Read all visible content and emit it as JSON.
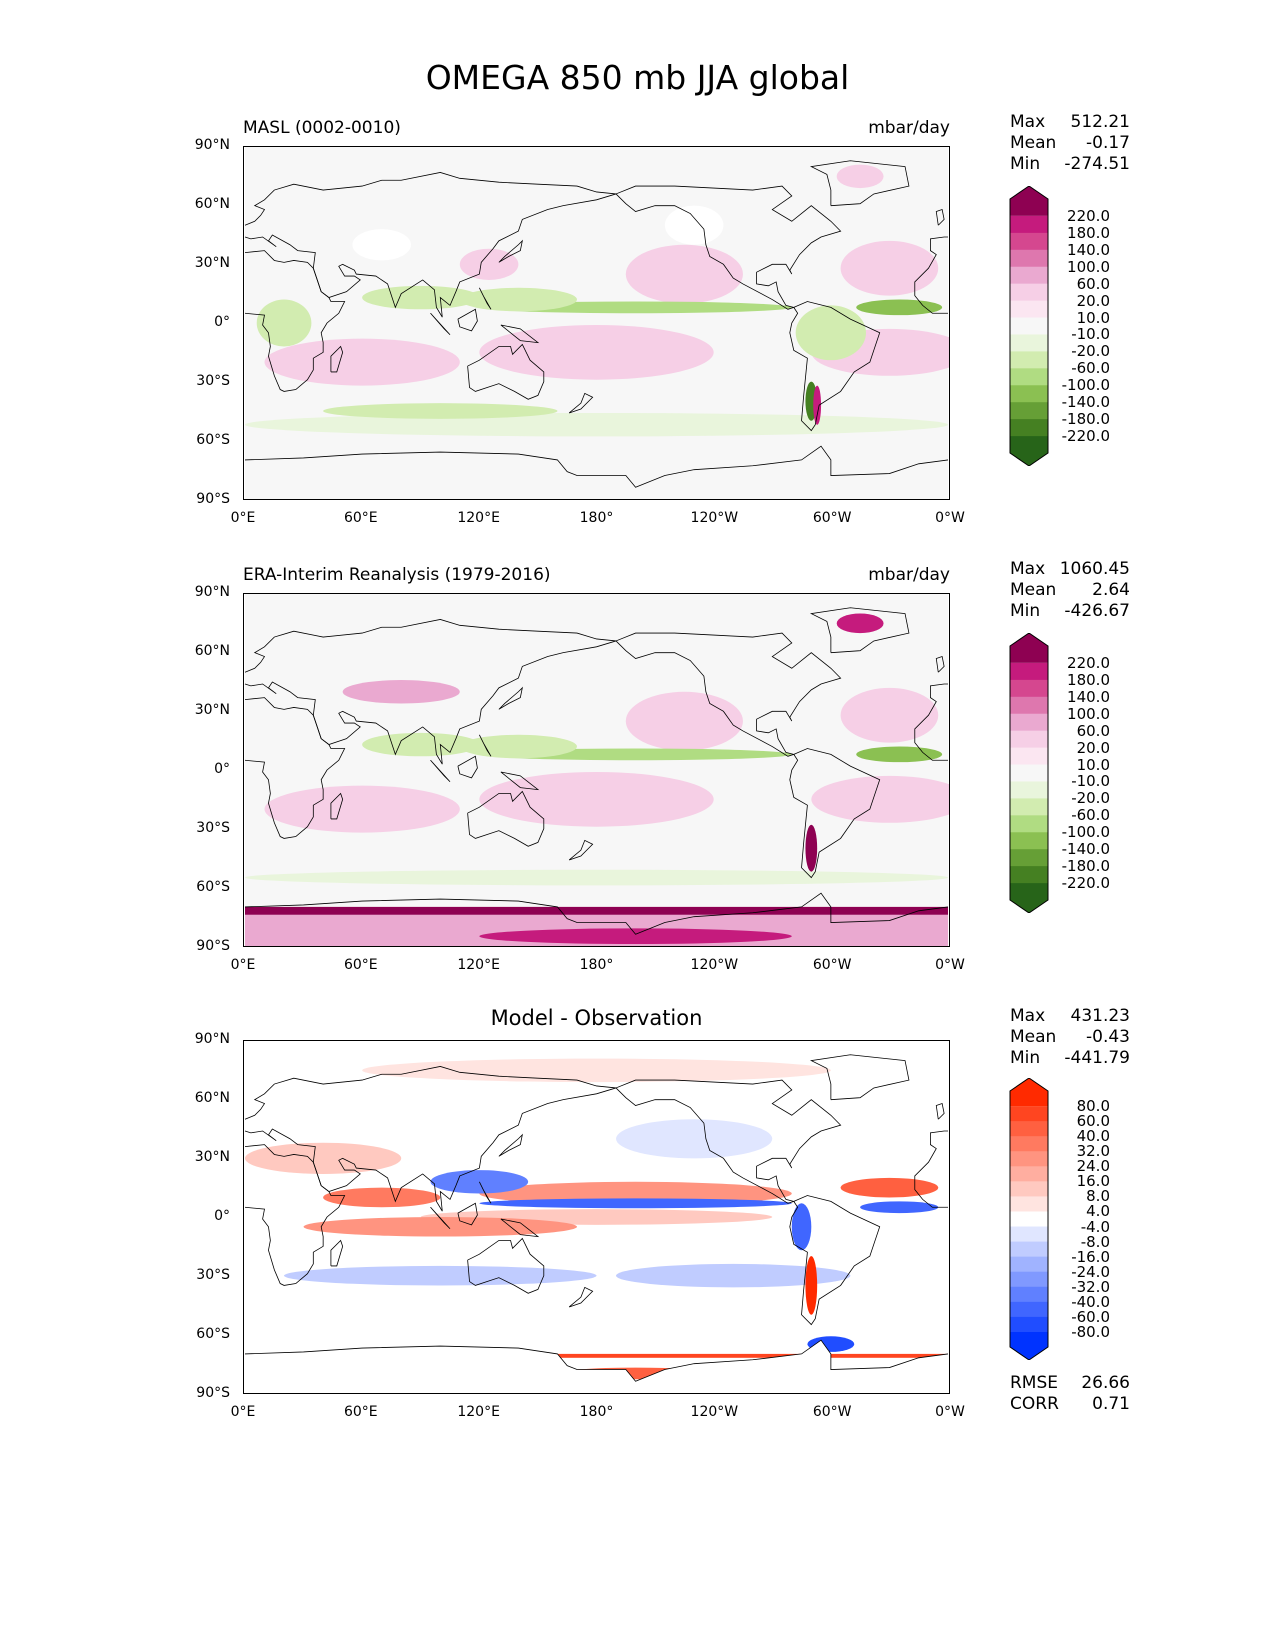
{
  "title": "OMEGA 850 mb JJA global",
  "chart_data": [
    {
      "type": "heatmap",
      "title_left": "MASL (0002-0010)",
      "title_right": "mbar/day",
      "stats": {
        "max_label": "Max",
        "max": "512.21",
        "mean_label": "Mean",
        "mean": "-0.17",
        "min_label": "Min",
        "min": "-274.51"
      },
      "colorbar": {
        "ticks": [
          "220.0",
          "180.0",
          "140.0",
          "100.0",
          "60.0",
          "20.0",
          "10.0",
          "-10.0",
          "-20.0",
          "-60.0",
          "-100.0",
          "-140.0",
          "-180.0",
          "-220.0"
        ],
        "colors": [
          "#8e0152",
          "#c51b7d",
          "#d5478f",
          "#de77ae",
          "#eaa9d0",
          "#f6cfe6",
          "#fbe6f1",
          "#f7f7f7",
          "#e9f5dc",
          "#d2ecb0",
          "#b0dc82",
          "#8bc052",
          "#669f36",
          "#458022",
          "#276419"
        ]
      },
      "xticks": [
        "0°E",
        "60°E",
        "120°E",
        "180°",
        "120°W",
        "60°W",
        "0°W"
      ],
      "yticks": [
        "90°N",
        "60°N",
        "30°N",
        "0°",
        "30°S",
        "60°S",
        "90°S"
      ],
      "xlim": [
        0,
        360
      ],
      "ylim": [
        -90,
        90
      ]
    },
    {
      "type": "heatmap",
      "title_left": "ERA-Interim Reanalysis (1979-2016)",
      "title_right": "mbar/day",
      "stats": {
        "max_label": "Max",
        "max": "1060.45",
        "mean_label": "Mean",
        "mean": "2.64",
        "min_label": "Min",
        "min": "-426.67"
      },
      "colorbar": {
        "ticks": [
          "220.0",
          "180.0",
          "140.0",
          "100.0",
          "60.0",
          "20.0",
          "10.0",
          "-10.0",
          "-20.0",
          "-60.0",
          "-100.0",
          "-140.0",
          "-180.0",
          "-220.0"
        ],
        "colors": [
          "#8e0152",
          "#c51b7d",
          "#d5478f",
          "#de77ae",
          "#eaa9d0",
          "#f6cfe6",
          "#fbe6f1",
          "#f7f7f7",
          "#e9f5dc",
          "#d2ecb0",
          "#b0dc82",
          "#8bc052",
          "#669f36",
          "#458022",
          "#276419"
        ]
      },
      "xticks": [
        "0°E",
        "60°E",
        "120°E",
        "180°",
        "120°W",
        "60°W",
        "0°W"
      ],
      "yticks": [
        "90°N",
        "60°N",
        "30°N",
        "0°",
        "30°S",
        "60°S",
        "90°S"
      ],
      "xlim": [
        0,
        360
      ],
      "ylim": [
        -90,
        90
      ]
    },
    {
      "type": "heatmap",
      "title_center": "Model - Observation",
      "stats": {
        "max_label": "Max",
        "max": "431.23",
        "mean_label": "Mean",
        "mean": "-0.43",
        "min_label": "Min",
        "min": "-441.79"
      },
      "metrics": {
        "rmse_label": "RMSE",
        "rmse": "26.66",
        "corr_label": "CORR",
        "corr": "0.71"
      },
      "colorbar": {
        "ticks": [
          "80.0",
          "60.0",
          "40.0",
          "32.0",
          "24.0",
          "16.0",
          "8.0",
          "4.0",
          "-4.0",
          "-8.0",
          "-16.0",
          "-24.0",
          "-32.0",
          "-40.0",
          "-60.0",
          "-80.0"
        ],
        "colors": [
          "#ff2a00",
          "#ff4520",
          "#ff6040",
          "#ff7a60",
          "#ff9480",
          "#ffaea0",
          "#ffc9c0",
          "#ffe4e0",
          "#ffffff",
          "#e0e6ff",
          "#c0ccff",
          "#a0b3ff",
          "#8099ff",
          "#6080ff",
          "#4066ff",
          "#204dff",
          "#0033ff"
        ]
      },
      "xticks": [
        "0°E",
        "60°E",
        "120°E",
        "180°",
        "120°W",
        "60°W",
        "0°W"
      ],
      "yticks": [
        "90°N",
        "60°N",
        "30°N",
        "0°",
        "30°S",
        "60°S",
        "90°S"
      ],
      "xlim": [
        0,
        360
      ],
      "ylim": [
        -90,
        90
      ]
    }
  ]
}
